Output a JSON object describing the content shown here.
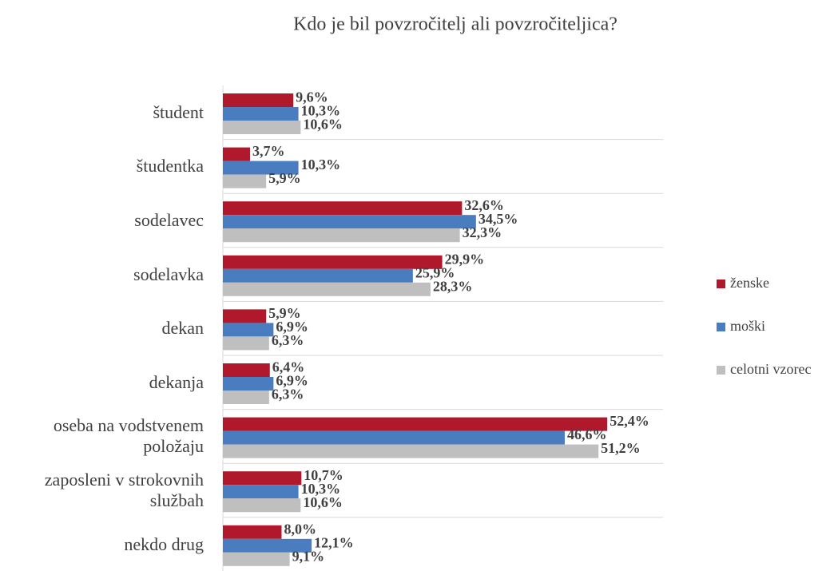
{
  "chart_data": {
    "type": "bar",
    "orientation": "horizontal",
    "title": "Kdo je bil povzročitelj ali povzročiteljica?",
    "categories": [
      "študent",
      "študentka",
      "sodelavec",
      "sodelavka",
      "dekan",
      "dekanja",
      "oseba na vodstvenem položaju",
      "zaposleni v strokovnih službah",
      "nekdo drug"
    ],
    "series": [
      {
        "name": "ženske",
        "color": "#b0182c",
        "values": [
          9.6,
          3.7,
          32.6,
          29.9,
          5.9,
          6.4,
          52.4,
          10.7,
          8.0
        ],
        "value_labels": [
          "9,6%",
          "3,7%",
          "32,6%",
          "29,9%",
          "5,9%",
          "6,4%",
          "52,4%",
          "10,7%",
          "8,0%"
        ]
      },
      {
        "name": "moški",
        "color": "#4a7dbf",
        "values": [
          10.3,
          10.3,
          34.5,
          25.9,
          6.9,
          6.9,
          46.6,
          10.3,
          12.1
        ],
        "value_labels": [
          "10,3%",
          "10,3%",
          "34,5%",
          "25,9%",
          "6,9%",
          "6,9%",
          "46,6%",
          "10,3%",
          "12,1%"
        ]
      },
      {
        "name": "celotni vzorec",
        "color": "#bfbfbf",
        "values": [
          10.6,
          5.9,
          32.3,
          28.3,
          6.3,
          6.3,
          51.2,
          10.6,
          9.1
        ],
        "value_labels": [
          "10,6%",
          "5,9%",
          "32,3%",
          "28,3%",
          "6,3%",
          "6,3%",
          "51,2%",
          "10,6%",
          "9,1%"
        ]
      }
    ],
    "xlim": [
      0,
      60
    ],
    "legend": "right"
  }
}
